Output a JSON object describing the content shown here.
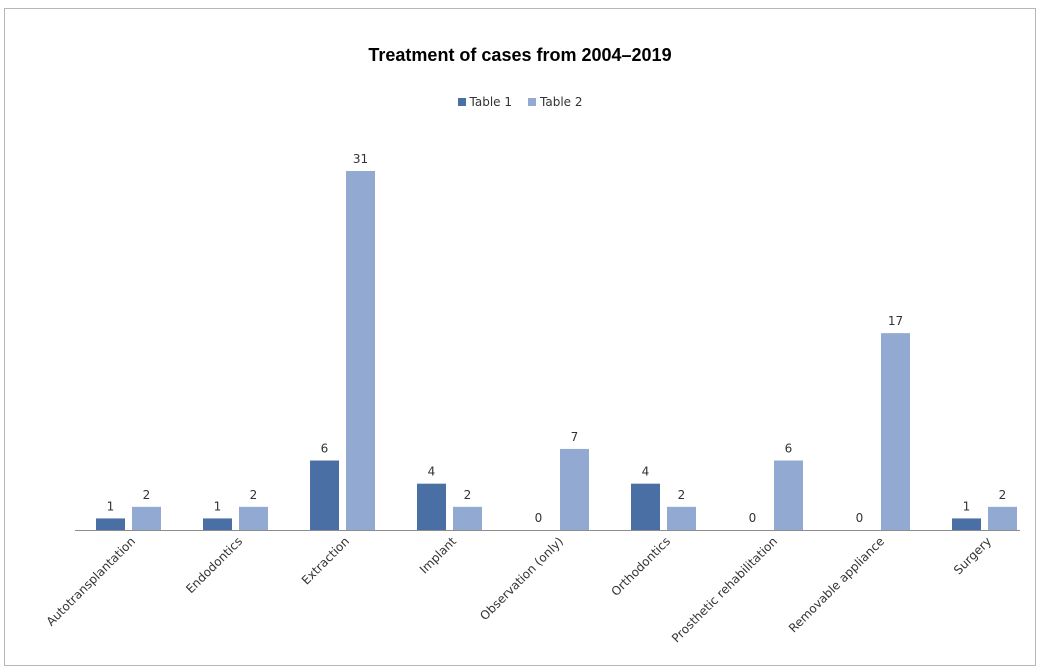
{
  "chart_data": {
    "type": "bar",
    "title": "Treatment of cases from 2004–2019",
    "categories": [
      "Autotransplantation",
      "Endodontics",
      "Extraction",
      "Implant",
      "Observation (only)",
      "Orthodontics",
      "Prosthetic rehabilitation",
      "Removable appliance",
      "Surgery"
    ],
    "series": [
      {
        "name": "Table 1",
        "color": "#4a6fa5",
        "values": [
          1,
          1,
          6,
          4,
          0,
          4,
          0,
          0,
          1
        ]
      },
      {
        "name": "Table 2",
        "color": "#92a9d1",
        "values": [
          2,
          2,
          31,
          2,
          7,
          2,
          6,
          17,
          2
        ]
      }
    ],
    "ylim": [
      0,
      31
    ],
    "grid": false,
    "legend_position": "top-center",
    "data_labels": true
  }
}
